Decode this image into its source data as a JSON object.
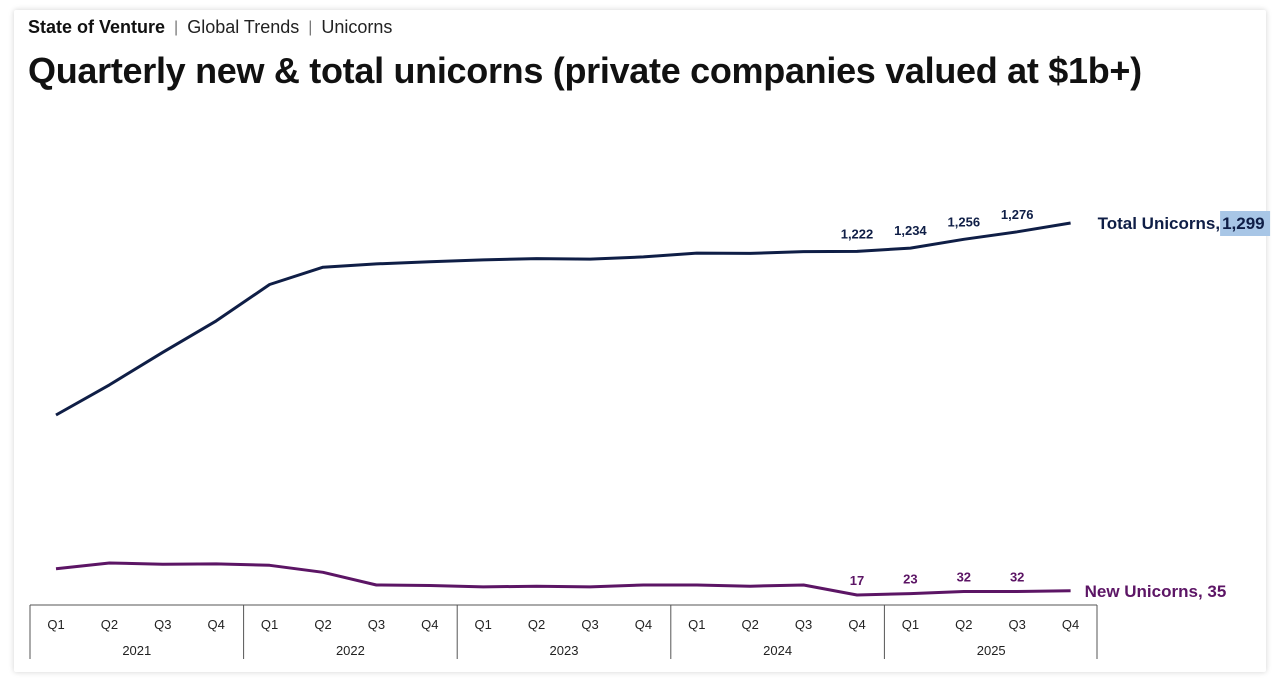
{
  "header": {
    "breadcrumb": [
      "State of Venture",
      "Global Trends",
      "Unicorns"
    ],
    "title": "Quarterly new & total unicorns (private companies valued at $1b+)"
  },
  "colors": {
    "total": "#0f1e46",
    "new": "#5c1565",
    "highlight": "#a8c6e6"
  },
  "chart_data": {
    "type": "line",
    "x": [
      "Q1",
      "Q2",
      "Q3",
      "Q4",
      "Q1",
      "Q2",
      "Q3",
      "Q4",
      "Q1",
      "Q2",
      "Q3",
      "Q4",
      "Q1",
      "Q2",
      "Q3",
      "Q4",
      "Q1",
      "Q2",
      "Q3",
      "Q4"
    ],
    "years": [
      {
        "label": "2021",
        "quarters": 4
      },
      {
        "label": "2022",
        "quarters": 4
      },
      {
        "label": "2023",
        "quarters": 4
      },
      {
        "label": "2024",
        "quarters": 4
      },
      {
        "label": "2025",
        "quarters": 4
      }
    ],
    "series": [
      {
        "name": "Total Unicorns",
        "end_label": "Total Unicorns, ",
        "end_value": "1,299",
        "values": [
          640,
          760,
          890,
          1015,
          1160,
          1229,
          1242,
          1251,
          1258,
          1263,
          1261,
          1270,
          1285,
          1284,
          1291,
          1222,
          1234,
          1256,
          1276,
          1299
        ],
        "data_labels": [
          {
            "index": 15,
            "text": "1,222"
          },
          {
            "index": 16,
            "text": "1,234"
          },
          {
            "index": 17,
            "text": "1,256"
          },
          {
            "index": 18,
            "text": "1,276"
          }
        ]
      },
      {
        "name": "New Unicorns",
        "end_label": "New Unicorns, 35",
        "end_value": "35",
        "values": [
          130,
          155,
          150,
          151,
          145,
          115,
          60,
          58,
          52,
          55,
          52,
          60,
          60,
          55,
          60,
          17,
          23,
          32,
          32,
          35
        ],
        "data_labels": [
          {
            "index": 15,
            "text": "17"
          },
          {
            "index": 16,
            "text": "23"
          },
          {
            "index": 17,
            "text": "32"
          },
          {
            "index": 18,
            "text": "32"
          }
        ]
      }
    ],
    "legend": "inline-end-labels",
    "grid": false
  }
}
